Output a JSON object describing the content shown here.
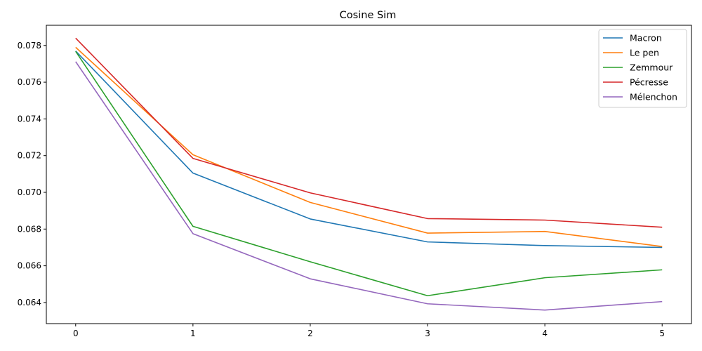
{
  "chart_data": {
    "type": "line",
    "title": "Cosine Sim",
    "xlabel": "",
    "ylabel": "",
    "x": [
      0,
      1,
      2,
      3,
      4,
      5
    ],
    "xlim": [
      -0.25,
      5.25
    ],
    "ylim": [
      0.06285,
      0.0791
    ],
    "xticks": [
      "0",
      "1",
      "2",
      "3",
      "4",
      "5"
    ],
    "yticks": [
      "0.064",
      "0.066",
      "0.068",
      "0.070",
      "0.072",
      "0.074",
      "0.076",
      "0.078"
    ],
    "ytick_values": [
      0.064,
      0.066,
      0.068,
      0.07,
      0.072,
      0.074,
      0.076,
      0.078
    ],
    "grid": false,
    "legend_position": "top-right",
    "series": [
      {
        "name": "Macron",
        "color": "#1f77b4",
        "values": [
          0.0777,
          0.07105,
          0.06855,
          0.0673,
          0.0671,
          0.067
        ]
      },
      {
        "name": "Le pen",
        "color": "#ff7f0e",
        "values": [
          0.0779,
          0.07205,
          0.06945,
          0.06778,
          0.06787,
          0.06705
        ]
      },
      {
        "name": "Zemmour",
        "color": "#2ca02c",
        "values": [
          0.07768,
          0.06815,
          0.06622,
          0.06437,
          0.06535,
          0.06578
        ]
      },
      {
        "name": "Pécresse",
        "color": "#d62728",
        "values": [
          0.0784,
          0.07185,
          0.06997,
          0.06857,
          0.06849,
          0.0681
        ]
      },
      {
        "name": "Mélenchon",
        "color": "#9467bd",
        "values": [
          0.07712,
          0.06775,
          0.06529,
          0.06393,
          0.06359,
          0.06405
        ]
      }
    ]
  }
}
